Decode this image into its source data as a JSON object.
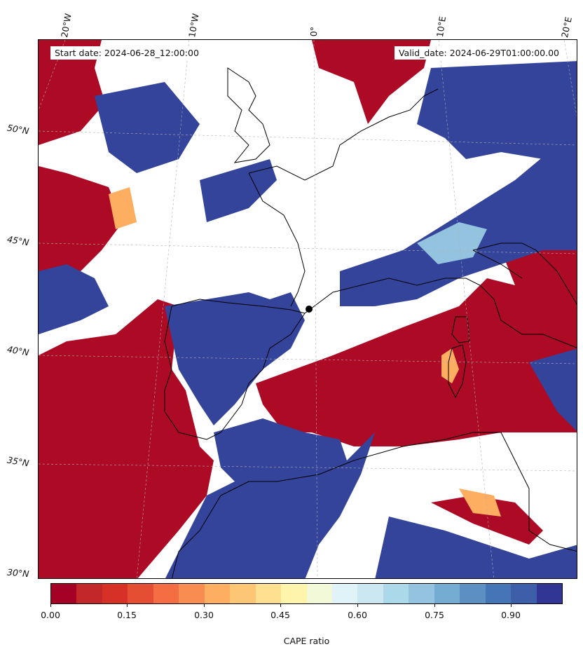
{
  "header": {
    "start_text": "Start date: 2024-06-28_12:00:00",
    "valid_text": "Valid_date: 2024-06-29T01:00:00.00"
  },
  "axes": {
    "lon_labels": [
      "20°W",
      "10°W",
      "0°",
      "10°E",
      "20°E"
    ],
    "lat_labels": [
      "50°N",
      "45°N",
      "40°N",
      "35°N",
      "30°N"
    ]
  },
  "colorbar": {
    "label": "CAPE ratio",
    "tick_labels": [
      "0.00",
      "0.15",
      "0.30",
      "0.45",
      "0.60",
      "0.75",
      "0.90"
    ],
    "tick_values": [
      0.0,
      0.15,
      0.3,
      0.45,
      0.6,
      0.75,
      0.9
    ],
    "range": [
      0.0,
      1.0
    ],
    "colors": [
      "#a50026",
      "#c4272a",
      "#d73027",
      "#e44e33",
      "#f46d43",
      "#f88d52",
      "#fdae61",
      "#fdc675",
      "#fee090",
      "#fef4ac",
      "#f1f9d8",
      "#e0f3f8",
      "#cbe8f2",
      "#abd9e9",
      "#93c3df",
      "#74add1",
      "#5c8fc2",
      "#4575b4",
      "#3d5ea9",
      "#313695"
    ]
  },
  "map": {
    "colors": {
      "low": "#ad0a26",
      "high": "#33449a",
      "mid_warm": "#fdae61",
      "mid_cool": "#93c3df",
      "none": "#ffffff",
      "coast": "#000000",
      "grid": "#b0b0b0"
    }
  }
}
